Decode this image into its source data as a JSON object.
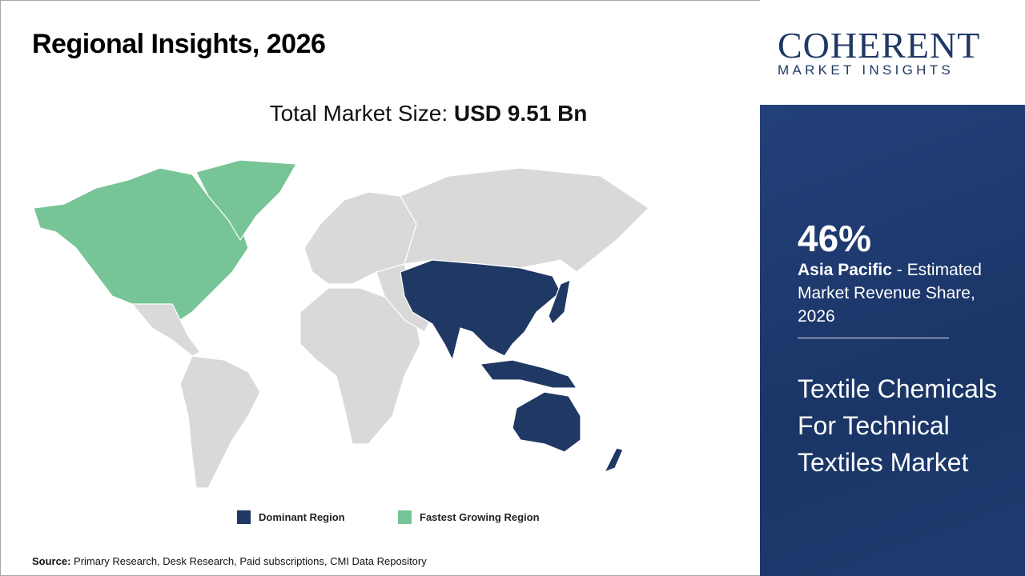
{
  "header": {
    "title": "Regional Insights, 2026"
  },
  "market_size": {
    "label": "Total Market Size:",
    "value": "USD 9.51 Bn"
  },
  "legend": [
    {
      "label": "Dominant Region",
      "color": "#1f3864"
    },
    {
      "label": "Fastest Growing Region",
      "color": "#77c596"
    }
  ],
  "map": {
    "other_color": "#d9d9d9"
  },
  "source": {
    "label": "Source:",
    "text": "Primary Research, Desk Research, Paid subscriptions, CMI Data Repository"
  },
  "logo": {
    "name": "COHERENT",
    "tagline": "MARKET INSIGHTS"
  },
  "highlight": {
    "share": "46%",
    "region": "Asia Pacific",
    "description": " - Estimated Market Revenue Share, 2026"
  },
  "market_name": "Textile Chemicals For Technical Textiles Market"
}
